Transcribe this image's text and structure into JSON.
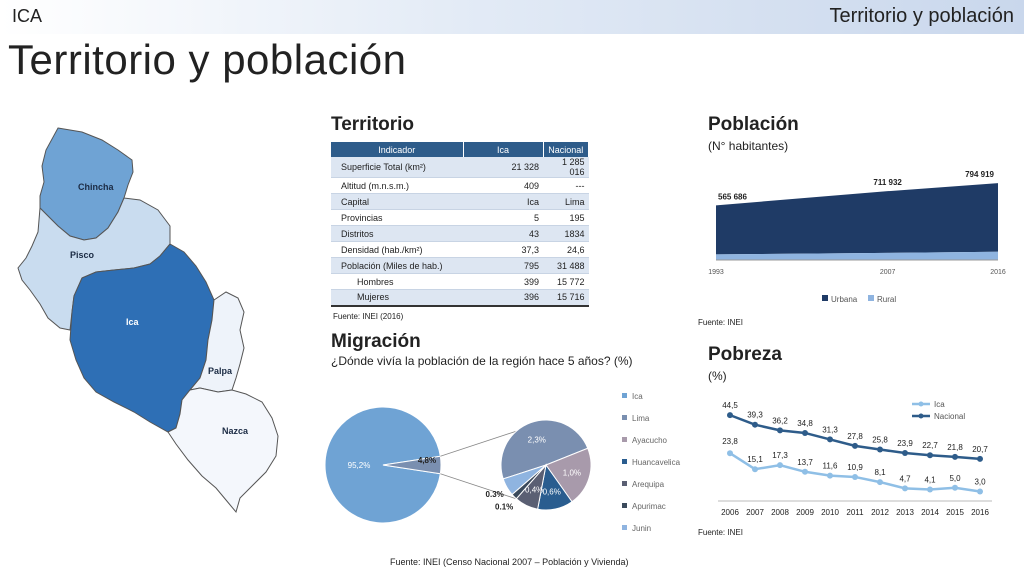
{
  "header": {
    "region": "ICA",
    "section": "Territorio y población"
  },
  "page_title": "Territorio y población",
  "map": {
    "provinces": [
      {
        "name": "Chincha",
        "color": "#6fa3d4"
      },
      {
        "name": "Pisco",
        "color": "#c9dcef"
      },
      {
        "name": "Ica",
        "color": "#2e6fb5"
      },
      {
        "name": "Palpa",
        "color": "#eef3fa"
      },
      {
        "name": "Nazca",
        "color": "#f4f7fc"
      }
    ]
  },
  "territorio": {
    "title": "Territorio",
    "headers": [
      "Indicador",
      "Ica",
      "Nacional"
    ],
    "rows": [
      {
        "label": "Superficie Total (km²)",
        "ica": "21 328",
        "nac": "1 285 016"
      },
      {
        "label": "Altitud (m.n.s.m.)",
        "ica": "409",
        "nac": "---"
      },
      {
        "label": "Capital",
        "ica": "Ica",
        "nac": "Lima"
      },
      {
        "label": "Provincias",
        "ica": "5",
        "nac": "195"
      },
      {
        "label": "Distritos",
        "ica": "43",
        "nac": "1834"
      },
      {
        "label": "Densidad (hab./km²)",
        "ica": "37,3",
        "nac": "24,6"
      },
      {
        "label": "Población (Miles de hab.)",
        "ica": "795",
        "nac": "31 488"
      },
      {
        "label": "Hombres",
        "ica": "399",
        "nac": "15 772"
      },
      {
        "label": "Mujeres",
        "ica": "396",
        "nac": "15 716"
      }
    ],
    "source": "Fuente: INEI (2016)"
  },
  "poblacion": {
    "title": "Población",
    "subtitle": "(N° habitantes)",
    "source": "Fuente: INEI",
    "chart_data": {
      "type": "area",
      "x": [
        "1993",
        "2007",
        "2016"
      ],
      "series": [
        {
          "name": "Urbana",
          "values": [
            508000,
            638000,
            710000
          ],
          "color": "#1f3b66"
        },
        {
          "name": "Rural",
          "values": [
            57686,
            73932,
            84919
          ],
          "color": "#8fb4e0"
        }
      ],
      "labels": [
        "565 686",
        "711 932",
        "794 919"
      ]
    }
  },
  "migracion": {
    "title": "Migración",
    "subtitle": "¿Dónde vivía la población de la región hace 5 años? (%)",
    "chart_data": {
      "type": "pie",
      "main": [
        {
          "label": "95,2%",
          "value": 95.2,
          "color": "#6fa3d4"
        },
        {
          "label": "4,8%",
          "value": 4.8,
          "color": "#7a8fb0"
        }
      ],
      "detail": [
        {
          "name": "Ica",
          "label": "",
          "value": 0,
          "color": "#6fa3d4"
        },
        {
          "name": "Lima",
          "label": "2,3%",
          "value": 2.3,
          "color": "#7a8fb0"
        },
        {
          "name": "Ayacucho",
          "label": "1,0%",
          "value": 1.0,
          "color": "#a89aab"
        },
        {
          "name": "Huancavelica",
          "label": "0,6%",
          "value": 0.6,
          "color": "#2a5d8f"
        },
        {
          "name": "Arequipa",
          "label": "0,4%",
          "value": 0.4,
          "color": "#5a5f73"
        },
        {
          "name": "Apurimac",
          "label": "0.1%",
          "value": 0.1,
          "color": "#3b4a5c"
        },
        {
          "name": "Junin",
          "label": "0.3%",
          "value": 0.3,
          "color": "#8fb4e0"
        }
      ],
      "legend": [
        "Ica",
        "Lima",
        "Ayacucho",
        "Huancavelica",
        "Arequipa",
        "Apurimac",
        "Junin"
      ]
    }
  },
  "pobreza": {
    "title": "Pobreza",
    "subtitle": "(%)",
    "source": "Fuente: INEI",
    "chart_data": {
      "type": "line",
      "x": [
        "2006",
        "2007",
        "2008",
        "2009",
        "2010",
        "2011",
        "2012",
        "2013",
        "2014",
        "2015",
        "2016"
      ],
      "series": [
        {
          "name": "Ica",
          "values": [
            23.8,
            15.1,
            17.3,
            13.7,
            11.6,
            10.9,
            8.1,
            4.7,
            4.1,
            5.0,
            3.0
          ],
          "labels": [
            "23,8",
            "15,1",
            "17,3",
            "13,7",
            "11,6",
            "10,9",
            "8,1",
            "4,7",
            "4,1",
            "5,0",
            "3,0"
          ],
          "color": "#8fbfe6"
        },
        {
          "name": "Nacional",
          "values": [
            44.5,
            39.3,
            36.2,
            34.8,
            31.3,
            27.8,
            25.8,
            23.9,
            22.7,
            21.8,
            20.7
          ],
          "labels": [
            "44,5",
            "39,3",
            "36,2",
            "34,8",
            "31,3",
            "27,8",
            "25,8",
            "23,9",
            "22,7",
            "21,8",
            "20,7"
          ],
          "color": "#2e5c8a"
        }
      ],
      "ylim": [
        0,
        50
      ]
    }
  },
  "footer_source": "Fuente: INEI (Censo Nacional 2007 – Población y Vivienda)"
}
